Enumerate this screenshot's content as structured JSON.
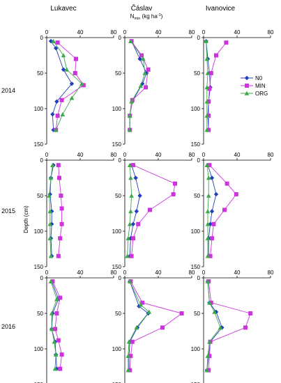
{
  "figure": {
    "site_titles": [
      "Lukavec",
      "Čáslav",
      "Ivanovice"
    ],
    "x_axis_label": "N",
    "x_axis_label_subscript": "min",
    "x_axis_label_units": " (kg ha",
    "x_axis_label_exponent": "-1",
    "x_axis_label_close": ")",
    "y_axis_label": "Depth (cm)",
    "year_labels": [
      "2014",
      "2015",
      "2016"
    ]
  },
  "chart_data": {
    "type": "line",
    "orientation": "profile",
    "x_quantity": "N_min (kg ha-1)",
    "y_quantity": "Depth (cm)",
    "xlim": [
      0,
      80
    ],
    "ylim": [
      150,
      0
    ],
    "x_ticks": [
      0,
      40,
      80
    ],
    "y_ticks": [
      0,
      50,
      100,
      150
    ],
    "grid": false,
    "legend_position": "right of Ivanovice 2014 panel",
    "legend": [
      "N0",
      "MIN",
      "ORG"
    ],
    "series_styles": {
      "N0": {
        "color": "#1f3fbf",
        "marker": "diamond"
      },
      "MIN": {
        "color": "#cc33dd",
        "marker": "square"
      },
      "ORG": {
        "color": "#3aaa48",
        "marker": "triangle"
      }
    },
    "depths": [
      5,
      15,
      30,
      45,
      60,
      75,
      90,
      105,
      120,
      135
    ],
    "panels": [
      {
        "year": "2014",
        "site": "Lukavec",
        "series": [
          {
            "name": "N0",
            "points": [
              [
                5,
                5
              ],
              [
                11,
                15
              ],
              [
                20,
                45
              ],
              [
                30,
                65
              ],
              [
                12,
                90
              ],
              [
                7,
                108
              ],
              [
                8,
                130
              ]
            ]
          },
          {
            "name": "MIN",
            "points": [
              [
                13,
                7
              ],
              [
                35,
                30
              ],
              [
                34,
                50
              ],
              [
                44,
                67
              ],
              [
                18,
                88
              ],
              [
                13,
                110
              ],
              [
                11,
                130
              ]
            ]
          },
          {
            "name": "ORG",
            "points": [
              [
                8,
                5
              ],
              [
                20,
                25
              ],
              [
                24,
                45
              ],
              [
                42,
                65
              ],
              [
                30,
                85
              ],
              [
                19,
                108
              ],
              [
                11,
                130
              ]
            ]
          }
        ]
      },
      {
        "year": "2014",
        "site": "Čáslav",
        "series": [
          {
            "name": "N0",
            "points": [
              [
                8,
                5
              ],
              [
                18,
                30
              ],
              [
                26,
                50
              ],
              [
                21,
                65
              ],
              [
                9,
                90
              ],
              [
                6,
                110
              ],
              [
                6,
                130
              ]
            ]
          },
          {
            "name": "MIN",
            "points": [
              [
                8,
                5
              ],
              [
                20,
                25
              ],
              [
                28,
                45
              ],
              [
                25,
                70
              ],
              [
                9,
                88
              ],
              [
                6,
                110
              ],
              [
                6,
                130
              ]
            ]
          },
          {
            "name": "ORG",
            "points": [
              [
                7,
                5
              ],
              [
                22,
                30
              ],
              [
                24,
                50
              ],
              [
                19,
                68
              ],
              [
                8,
                90
              ],
              [
                6,
                110
              ],
              [
                6,
                130
              ]
            ]
          }
        ]
      },
      {
        "year": "2014",
        "site": "Ivanovice",
        "series": [
          {
            "name": "N0",
            "points": [
              [
                3,
                5
              ],
              [
                5,
                30
              ],
              [
                7,
                50
              ],
              [
                8,
                70
              ],
              [
                6,
                90
              ],
              [
                5,
                110
              ],
              [
                6,
                130
              ]
            ]
          },
          {
            "name": "MIN",
            "points": [
              [
                27,
                7
              ],
              [
                15,
                25
              ],
              [
                9,
                50
              ],
              [
                7,
                72
              ],
              [
                6,
                90
              ],
              [
                6,
                110
              ],
              [
                6,
                130
              ]
            ]
          },
          {
            "name": "ORG",
            "points": [
              [
                3,
                5
              ],
              [
                4,
                30
              ],
              [
                5,
                50
              ],
              [
                4,
                70
              ],
              [
                4,
                90
              ],
              [
                4,
                110
              ],
              [
                4,
                130
              ]
            ]
          }
        ]
      },
      {
        "year": "2015",
        "site": "Lukavec",
        "series": [
          {
            "name": "N0",
            "points": [
              [
                8,
                7
              ],
              [
                5,
                25
              ],
              [
                4,
                48
              ],
              [
                6,
                72
              ],
              [
                6,
                90
              ],
              [
                5,
                110
              ],
              [
                6,
                135
              ]
            ]
          },
          {
            "name": "MIN",
            "points": [
              [
                14,
                7
              ],
              [
                15,
                25
              ],
              [
                17,
                50
              ],
              [
                18,
                68
              ],
              [
                18,
                90
              ],
              [
                16,
                110
              ],
              [
                14,
                135
              ]
            ]
          },
          {
            "name": "ORG",
            "points": [
              [
                7,
                7
              ],
              [
                5,
                25
              ],
              [
                3,
                50
              ],
              [
                4,
                72
              ],
              [
                4,
                90
              ],
              [
                4,
                110
              ],
              [
                5,
                135
              ]
            ]
          }
        ]
      },
      {
        "year": "2015",
        "site": "Čáslav",
        "series": [
          {
            "name": "N0",
            "points": [
              [
                8,
                7
              ],
              [
                13,
                25
              ],
              [
                18,
                50
              ],
              [
                14,
                72
              ],
              [
                10,
                90
              ],
              [
                7,
                110
              ],
              [
                6,
                135
              ]
            ]
          },
          {
            "name": "MIN",
            "points": [
              [
                10,
                7
              ],
              [
                60,
                33
              ],
              [
                58,
                48
              ],
              [
                30,
                70
              ],
              [
                16,
                90
              ],
              [
                10,
                110
              ],
              [
                8,
                135
              ]
            ]
          },
          {
            "name": "ORG",
            "points": [
              [
                6,
                7
              ],
              [
                7,
                25
              ],
              [
                8,
                50
              ],
              [
                7,
                72
              ],
              [
                6,
                90
              ],
              [
                4,
                110
              ],
              [
                3,
                135
              ]
            ]
          }
        ]
      },
      {
        "year": "2015",
        "site": "Ivanovice",
        "series": [
          {
            "name": "N0",
            "points": [
              [
                5,
                7
              ],
              [
                10,
                25
              ],
              [
                15,
                48
              ],
              [
                10,
                72
              ],
              [
                8,
                90
              ],
              [
                6,
                110
              ],
              [
                6,
                135
              ]
            ]
          },
          {
            "name": "MIN",
            "points": [
              [
                7,
                7
              ],
              [
                28,
                33
              ],
              [
                39,
                48
              ],
              [
                25,
                70
              ],
              [
                12,
                90
              ],
              [
                10,
                110
              ],
              [
                8,
                135
              ]
            ]
          },
          {
            "name": "ORG",
            "points": [
              [
                4,
                7
              ],
              [
                6,
                25
              ],
              [
                6,
                50
              ],
              [
                5,
                72
              ],
              [
                5,
                90
              ],
              [
                5,
                110
              ],
              [
                5,
                135
              ]
            ]
          }
        ]
      },
      {
        "year": "2016",
        "site": "Lukavec",
        "series": [
          {
            "name": "N0",
            "points": [
              [
                6,
                5
              ],
              [
                14,
                30
              ],
              [
                7,
                50
              ],
              [
                6,
                72
              ],
              [
                10,
                90
              ],
              [
                11,
                108
              ],
              [
                12,
                128
              ]
            ]
          },
          {
            "name": "MIN",
            "points": [
              [
                7,
                5
              ],
              [
                16,
                28
              ],
              [
                12,
                50
              ],
              [
                10,
                72
              ],
              [
                14,
                88
              ],
              [
                18,
                108
              ],
              [
                16,
                128
              ]
            ]
          },
          {
            "name": "ORG",
            "points": [
              [
                5,
                5
              ],
              [
                12,
                30
              ],
              [
                6,
                50
              ],
              [
                6,
                72
              ],
              [
                9,
                90
              ],
              [
                11,
                108
              ],
              [
                10,
                128
              ]
            ]
          }
        ]
      },
      {
        "year": "2016",
        "site": "Čáslav",
        "series": [
          {
            "name": "N0",
            "points": [
              [
                6,
                5
              ],
              [
                17,
                40
              ],
              [
                28,
                50
              ],
              [
                15,
                70
              ],
              [
                6,
                90
              ],
              [
                5,
                110
              ],
              [
                5,
                130
              ]
            ]
          },
          {
            "name": "MIN",
            "points": [
              [
                7,
                5
              ],
              [
                21,
                35
              ],
              [
                68,
                50
              ],
              [
                45,
                70
              ],
              [
                9,
                90
              ],
              [
                7,
                110
              ],
              [
                6,
                130
              ]
            ]
          },
          {
            "name": "ORG",
            "points": [
              [
                6,
                5
              ],
              [
                19,
                38
              ],
              [
                29,
                48
              ],
              [
                14,
                70
              ],
              [
                5,
                90
              ],
              [
                4,
                110
              ],
              [
                4,
                130
              ]
            ]
          }
        ]
      },
      {
        "year": "2016",
        "site": "Ivanovice",
        "series": [
          {
            "name": "N0",
            "points": [
              [
                5,
                5
              ],
              [
                7,
                35
              ],
              [
                15,
                48
              ],
              [
                22,
                70
              ],
              [
                8,
                90
              ],
              [
                6,
                110
              ],
              [
                4,
                130
              ]
            ]
          },
          {
            "name": "MIN",
            "points": [
              [
                6,
                5
              ],
              [
                9,
                35
              ],
              [
                56,
                50
              ],
              [
                50,
                70
              ],
              [
                8,
                90
              ],
              [
                7,
                110
              ],
              [
                6,
                130
              ]
            ]
          },
          {
            "name": "ORG",
            "points": [
              [
                5,
                5
              ],
              [
                7,
                35
              ],
              [
                13,
                48
              ],
              [
                20,
                70
              ],
              [
                7,
                90
              ],
              [
                5,
                110
              ],
              [
                4,
                130
              ]
            ]
          }
        ]
      }
    ]
  }
}
